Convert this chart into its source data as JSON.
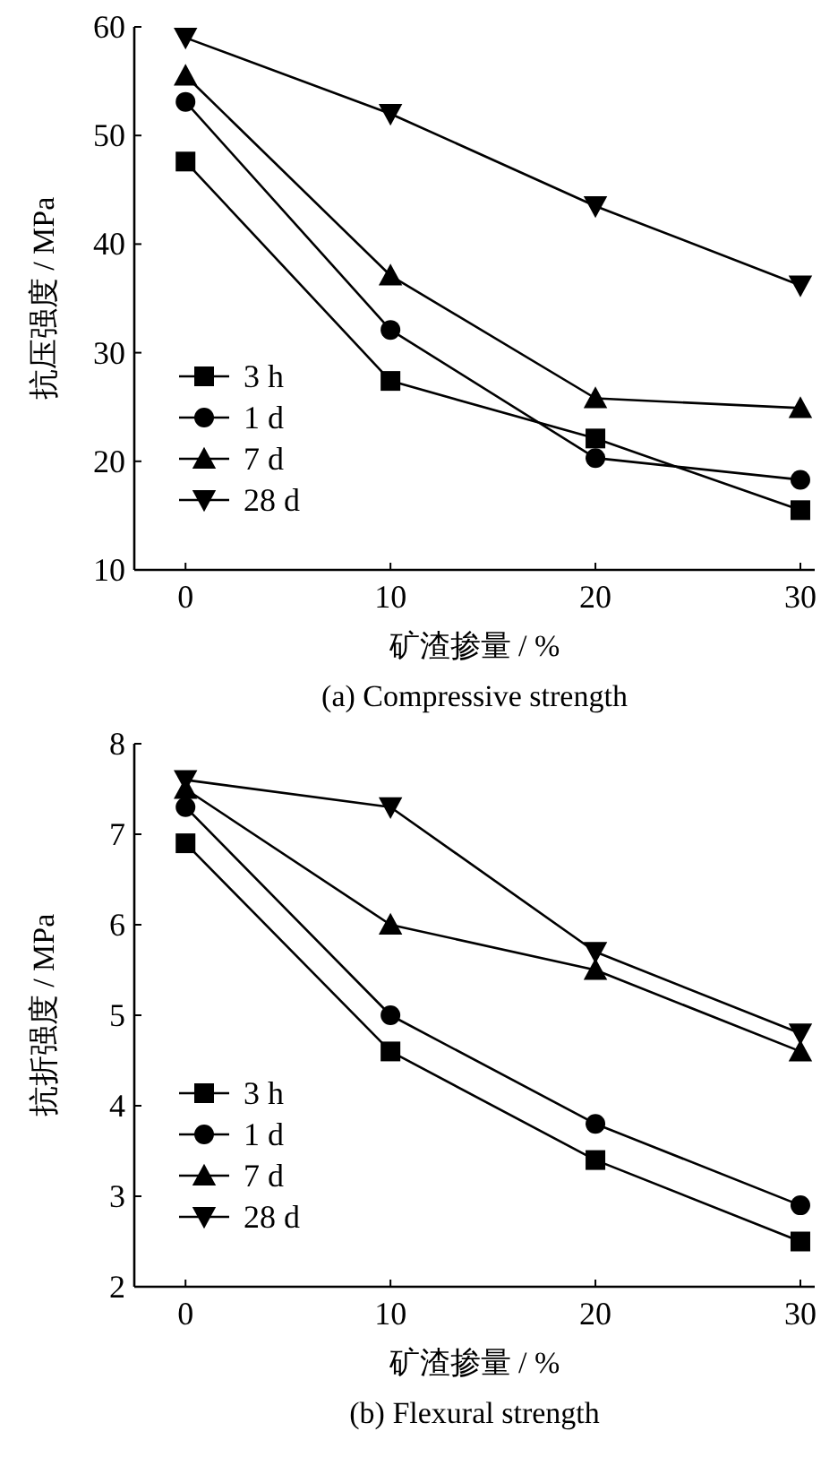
{
  "chart_data": [
    {
      "type": "line",
      "title": "(a)  Compressive strength",
      "xlabel": "矿渣掺量 / %",
      "ylabel": "抗压强度 / MPa",
      "x": [
        0,
        10,
        20,
        30
      ],
      "xlim": [
        -2.5,
        30.7
      ],
      "xticks": [
        0,
        10,
        20,
        30
      ],
      "ylim": [
        10,
        60
      ],
      "yticks": [
        10,
        20,
        30,
        40,
        50,
        60
      ],
      "legend": "bottom left",
      "grid": false,
      "series": [
        {
          "name": "3 h",
          "color": "#000000",
          "marker": "square",
          "values": [
            47.6,
            27.4,
            22.1,
            15.5
          ]
        },
        {
          "name": "1 d",
          "color": "#000000",
          "marker": "circle",
          "values": [
            53.1,
            32.1,
            20.3,
            18.3
          ]
        },
        {
          "name": "7 d",
          "color": "#000000",
          "marker": "triangle",
          "values": [
            55.5,
            37.1,
            25.8,
            24.9
          ]
        },
        {
          "name": "28 d",
          "color": "#000000",
          "marker": "triangle-down",
          "values": [
            59,
            52,
            43.5,
            36.2
          ]
        }
      ]
    },
    {
      "type": "line",
      "title": "(b)  Flexural strength",
      "xlabel": "矿渣掺量 / %",
      "ylabel": "抗折强度 / MPa",
      "x": [
        0,
        10,
        20,
        30
      ],
      "xlim": [
        -2.5,
        30.7
      ],
      "xticks": [
        0,
        10,
        20,
        30
      ],
      "ylim": [
        2,
        8
      ],
      "yticks": [
        2,
        3,
        4,
        5,
        6,
        7,
        8
      ],
      "legend": "bottom left",
      "grid": false,
      "series": [
        {
          "name": "3 h",
          "color": "#000000",
          "marker": "square",
          "values": [
            6.9,
            4.6,
            3.4,
            2.5
          ]
        },
        {
          "name": "1 d",
          "color": "#000000",
          "marker": "circle",
          "values": [
            7.3,
            5.0,
            3.8,
            2.9
          ]
        },
        {
          "name": "7 d",
          "color": "#000000",
          "marker": "triangle",
          "values": [
            7.5,
            6.0,
            5.5,
            4.6
          ]
        },
        {
          "name": "28 d",
          "color": "#000000",
          "marker": "triangle-down",
          "values": [
            7.6,
            7.3,
            5.7,
            4.8
          ]
        }
      ]
    }
  ]
}
